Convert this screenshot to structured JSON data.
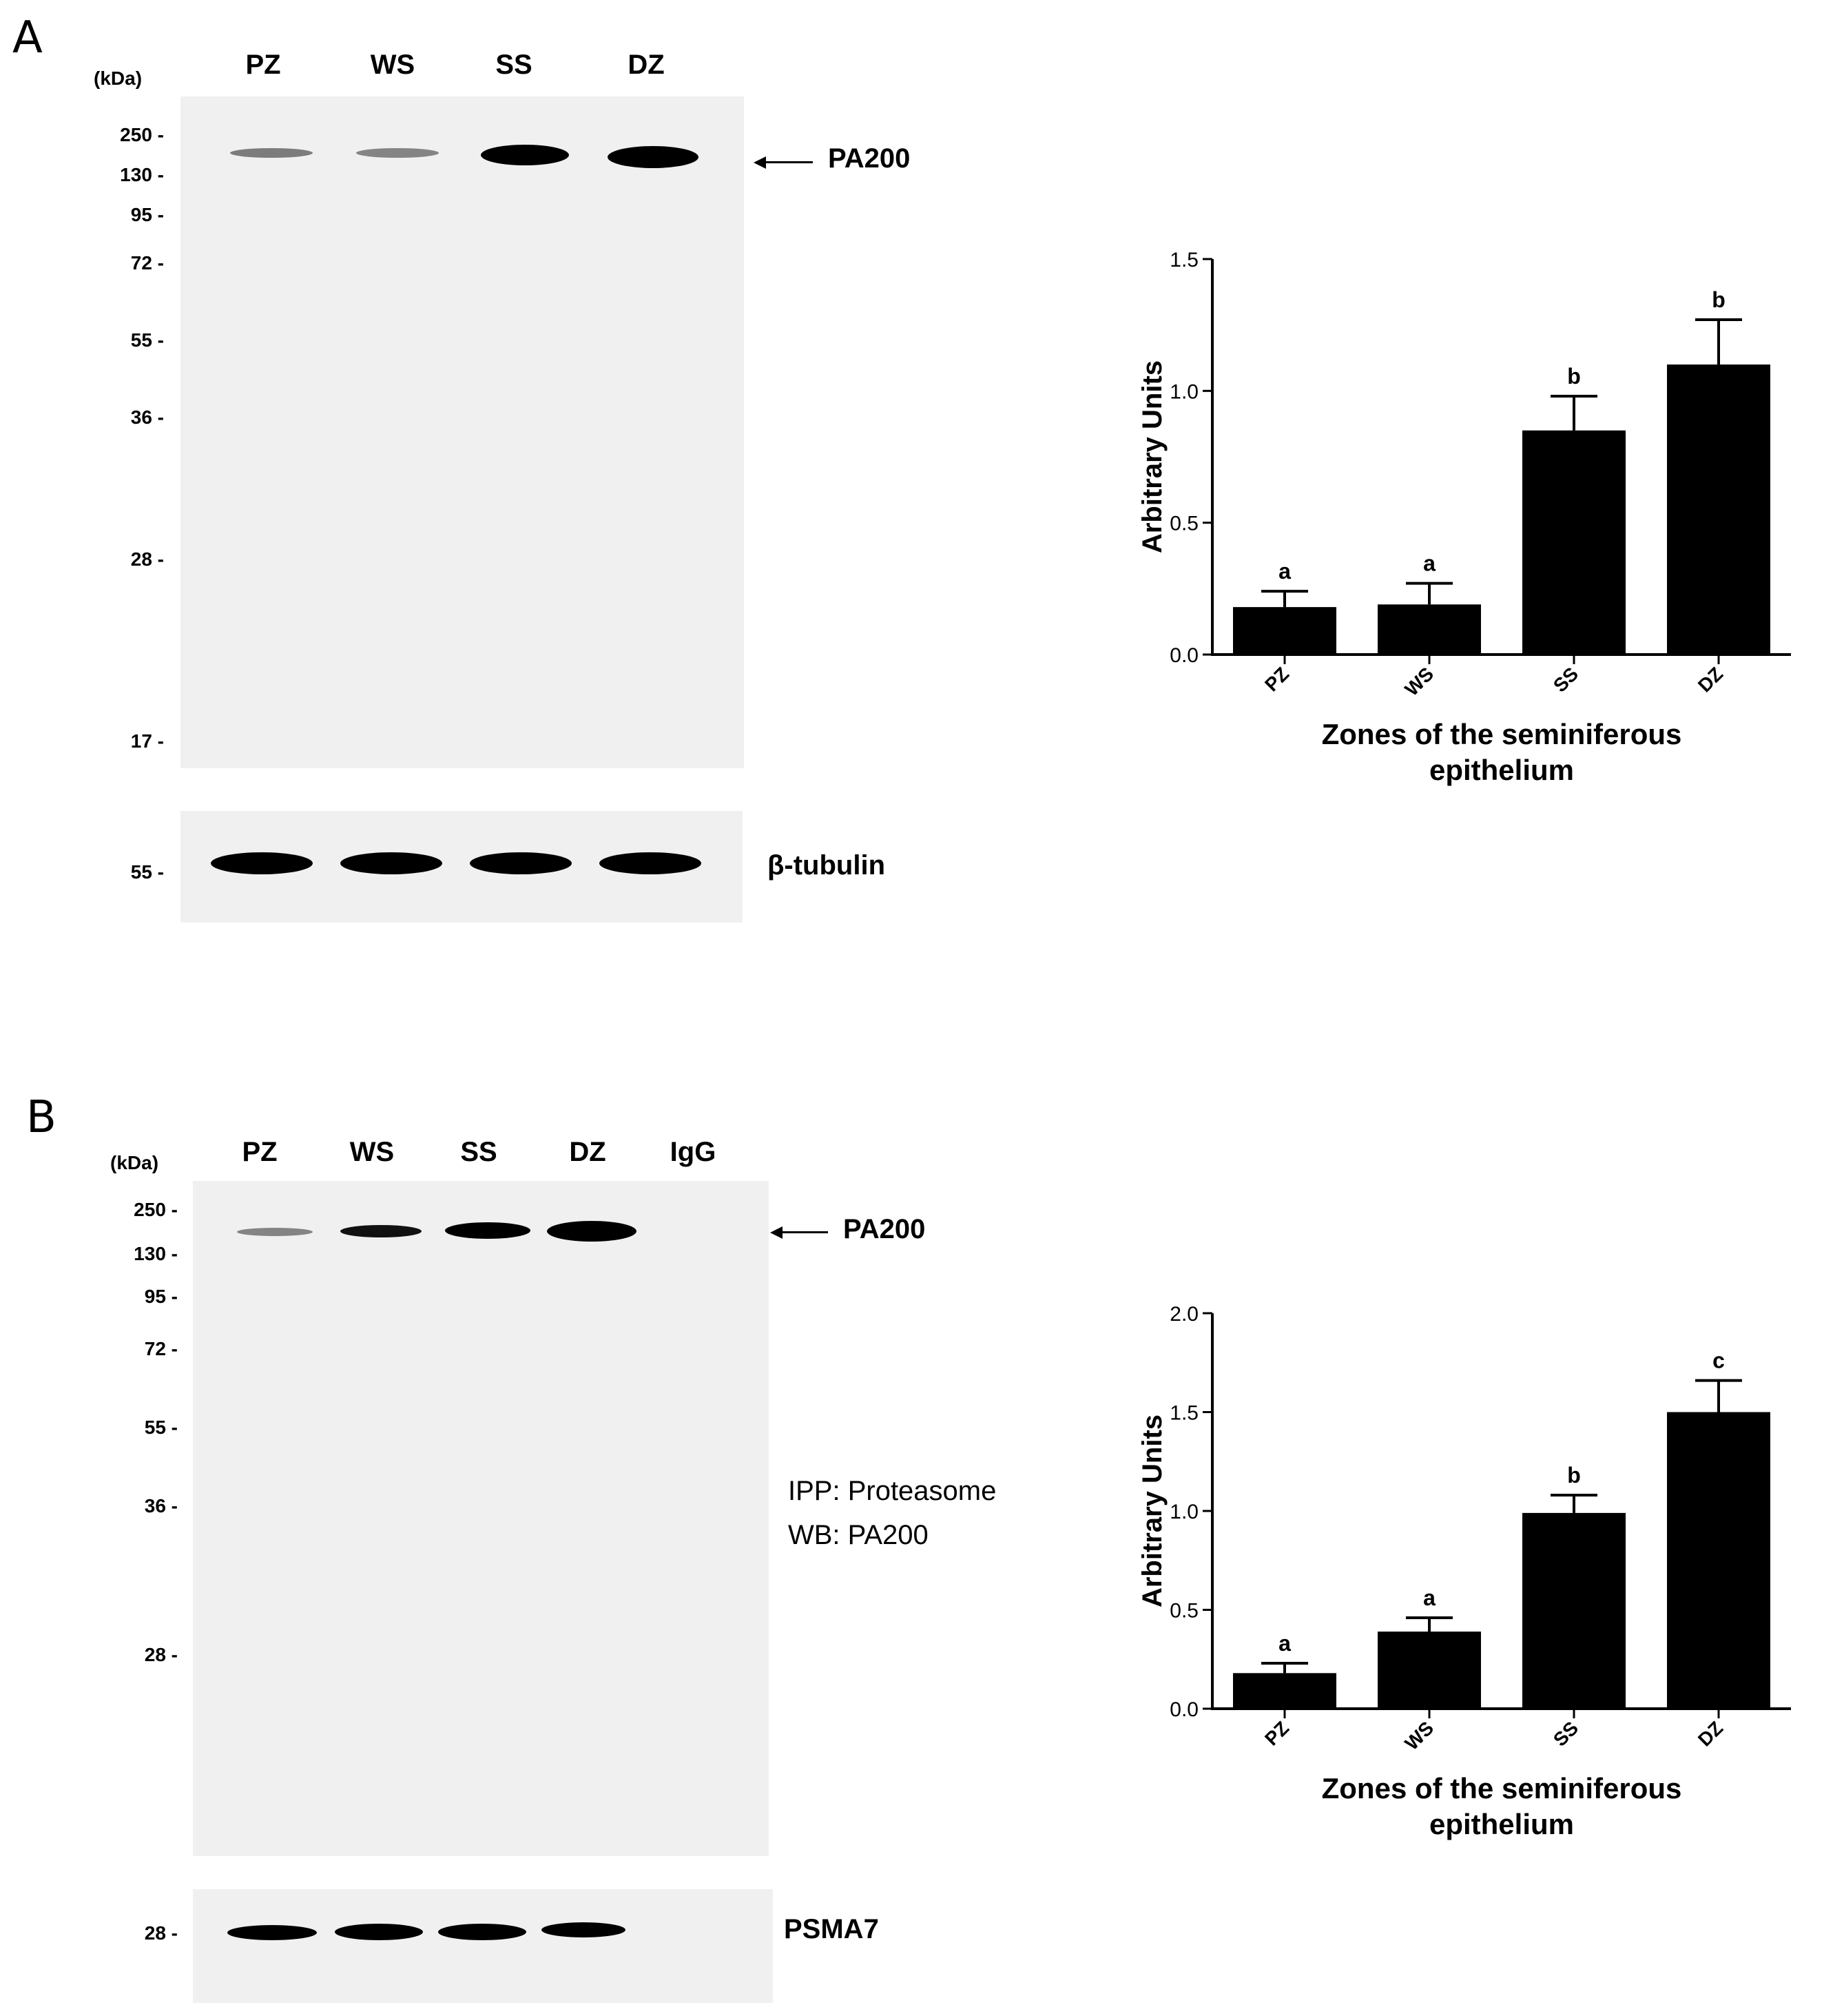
{
  "panels": [
    {
      "letter": "A",
      "blot": {
        "kda_label": "(kDa)",
        "lanes": [
          "PZ",
          "WS",
          "SS",
          "DZ"
        ],
        "mw_markers": [
          "250 -",
          "130 -",
          "95 -",
          "72 -",
          "55 -",
          "36 -",
          "28 -",
          "17 -"
        ],
        "target_protein": "PA200",
        "loading_control": {
          "label": "β-tubulin",
          "marker": "55 -"
        },
        "band_intensity": [
          0.35,
          0.3,
          1.0,
          1.0
        ]
      }
    },
    {
      "letter": "B",
      "blot": {
        "kda_label": "(kDa)",
        "lanes": [
          "PZ",
          "WS",
          "SS",
          "DZ",
          "IgG"
        ],
        "mw_markers": [
          "250 -",
          "130 -",
          "95 -",
          "72 -",
          "55 -",
          "36 -",
          "28 -"
        ],
        "target_protein": "PA200",
        "ipp_line": "IPP: Proteasome",
        "wb_line": "WB: PA200",
        "loading_control": {
          "label": "PSMA7",
          "marker": "28 -"
        },
        "band_intensity": [
          0.25,
          0.55,
          0.85,
          1.0,
          0
        ]
      }
    }
  ],
  "chart_data": [
    {
      "type": "bar",
      "categories": [
        "PZ",
        "WS",
        "SS",
        "DZ"
      ],
      "values": [
        0.18,
        0.19,
        0.85,
        1.1
      ],
      "errors": [
        0.06,
        0.08,
        0.13,
        0.17
      ],
      "significance": [
        "a",
        "a",
        "b",
        "b"
      ],
      "ylabel": "Arbitrary Units",
      "xlabel_lines": [
        "Zones of the seminiferous",
        "epithelium"
      ],
      "ylim": [
        0,
        1.5
      ],
      "yticks": [
        "0.0",
        "0.5",
        "1.0",
        "1.5"
      ],
      "ytick_values": [
        0,
        0.5,
        1.0,
        1.5
      ]
    },
    {
      "type": "bar",
      "categories": [
        "PZ",
        "WS",
        "SS",
        "DZ"
      ],
      "values": [
        0.18,
        0.39,
        0.99,
        1.5
      ],
      "errors": [
        0.05,
        0.07,
        0.09,
        0.16
      ],
      "significance": [
        "a",
        "a",
        "b",
        "c"
      ],
      "ylabel": "Arbitrary Units",
      "xlabel_lines": [
        "Zones of the seminiferous",
        "epithelium"
      ],
      "ylim": [
        0,
        2.0
      ],
      "yticks": [
        "0.0",
        "0.5",
        "1.0",
        "1.5",
        "2.0"
      ],
      "ytick_values": [
        0,
        0.5,
        1.0,
        1.5,
        2.0
      ]
    }
  ]
}
